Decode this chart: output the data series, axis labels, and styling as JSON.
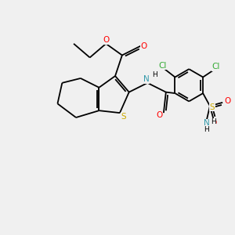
{
  "background_color": "#f0f0f0",
  "atom_colors": {
    "C": "#000000",
    "H": "#000000",
    "O": "#ff0000",
    "N": "#3399aa",
    "S": "#ccaa00",
    "Cl": "#33aa33"
  },
  "figsize": [
    3.0,
    3.0
  ],
  "dpi": 100,
  "bond_lw": 1.3,
  "font_size": 7.0
}
